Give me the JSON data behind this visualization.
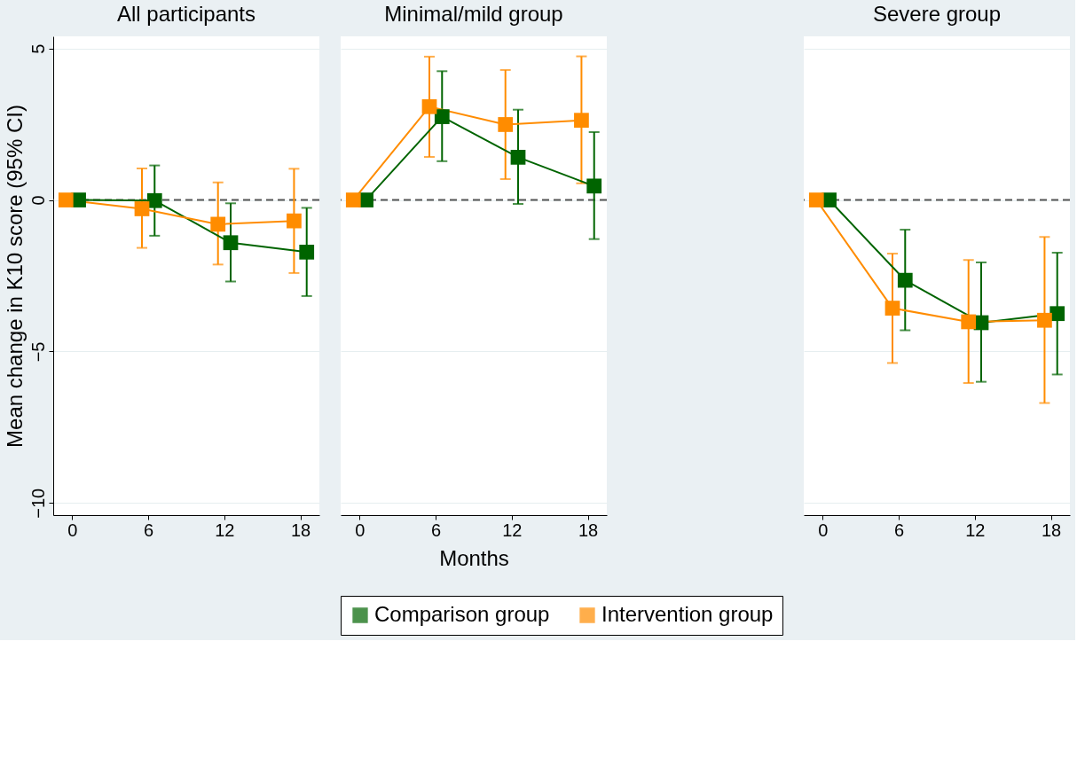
{
  "chart_data": [
    {
      "type": "line",
      "title": "All participants",
      "ylabel": "Mean change in K10 score (95% CI)",
      "xlim": [
        -1.5,
        19.5
      ],
      "ylim": [
        -10.4,
        5.4
      ],
      "xticks": [
        0,
        6,
        12,
        18
      ],
      "yticks": [
        -10,
        -5,
        0,
        5
      ],
      "grid": "y",
      "marker": "square",
      "line_style": "solid",
      "ref_lines": [
        {
          "axis": "y",
          "value": 0,
          "line_style": "dashed",
          "color": "#555555"
        }
      ],
      "series": [
        {
          "color": "#006400",
          "x": [
            0.5,
            6.5,
            12.5,
            18.5
          ],
          "values": [
            0,
            -0.02,
            -1.41,
            -1.72
          ],
          "errors": [
            null,
            [
              -1.18,
              1.14
            ],
            [
              -2.69,
              -0.11
            ],
            [
              -3.17,
              -0.26
            ]
          ]
        },
        {
          "color": "#ff8c00",
          "x": [
            -0.5,
            5.5,
            11.5,
            17.5
          ],
          "values": [
            0,
            -0.29,
            -0.8,
            -0.69
          ],
          "errors": [
            null,
            [
              -1.58,
              1.04
            ],
            [
              -2.13,
              0.58
            ],
            [
              -2.41,
              1.03
            ]
          ]
        }
      ]
    },
    {
      "type": "line",
      "title": "Minimal/mild group",
      "xlabel": "Months",
      "xlim": [
        -1.5,
        19.5
      ],
      "ylim": [
        -10.4,
        5.4
      ],
      "xticks": [
        0,
        6,
        12,
        18
      ],
      "yticks": [
        -10,
        -5,
        0,
        5
      ],
      "grid": "y",
      "marker": "square",
      "line_style": "solid",
      "tick_labels": "x",
      "legend": "bottom",
      "ref_lines": [
        {
          "axis": "y",
          "value": 0,
          "line_style": "dashed",
          "color": "#555555"
        }
      ],
      "series": [
        {
          "name": "Comparison group",
          "color": "#006400",
          "x": [
            0.5,
            6.5,
            12.5,
            18.5
          ],
          "values": [
            0,
            2.75,
            1.41,
            0.46
          ],
          "errors": [
            null,
            [
              1.28,
              4.25
            ],
            [
              -0.13,
              2.98
            ],
            [
              -1.29,
              2.24
            ]
          ]
        },
        {
          "name": "Intervention group",
          "color": "#ff8c00",
          "x": [
            -0.5,
            5.5,
            11.5,
            17.5
          ],
          "values": [
            0,
            3.08,
            2.49,
            2.63
          ],
          "errors": [
            null,
            [
              1.42,
              4.73
            ],
            [
              0.69,
              4.29
            ],
            [
              0.55,
              4.74
            ]
          ]
        }
      ]
    },
    {
      "type": "line",
      "title": "Severe group",
      "xlim": [
        -1.5,
        19.5
      ],
      "ylim": [
        -10.4,
        5.4
      ],
      "xticks": [
        0,
        6,
        12,
        18
      ],
      "yticks": [
        -10,
        -5,
        0,
        5
      ],
      "grid": "y",
      "marker": "square",
      "line_style": "solid",
      "tick_labels": "x",
      "ref_lines": [
        {
          "axis": "y",
          "value": 0,
          "line_style": "dashed",
          "color": "#555555"
        }
      ],
      "series": [
        {
          "color": "#006400",
          "x": [
            0.5,
            6.5,
            12.5,
            18.5
          ],
          "values": [
            0,
            -2.65,
            -4.05,
            -3.75
          ],
          "errors": [
            null,
            [
              -4.3,
              -0.98
            ],
            [
              -6.0,
              -2.06
            ],
            [
              -5.76,
              -1.74
            ]
          ]
        },
        {
          "color": "#ff8c00",
          "x": [
            -0.5,
            5.5,
            11.5,
            17.5
          ],
          "values": [
            0,
            -3.57,
            -4.02,
            -3.97
          ],
          "errors": [
            null,
            [
              -5.38,
              -1.77
            ],
            [
              -6.04,
              -1.98
            ],
            [
              -6.7,
              -1.22
            ]
          ]
        }
      ]
    }
  ]
}
